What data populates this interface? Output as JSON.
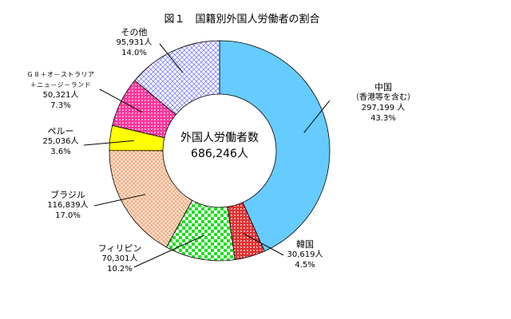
{
  "title": "図１　国籍別外国人労働者の割合",
  "center": {
    "label": "外国人労働者数",
    "total": "686,246人"
  },
  "chart_data": {
    "type": "pie",
    "title": "図１　国籍別外国人労働者の割合",
    "unit": "人",
    "total": 686246,
    "slices": [
      {
        "name": "中国",
        "sub": "（香港等を含む）",
        "value": 297199,
        "value_label": "297,199 人",
        "percent": 43.3,
        "percent_label": "43.3%",
        "color": "#66ccff",
        "pattern": "solid"
      },
      {
        "name": "韓国",
        "value": 30619,
        "value_label": "30,619人",
        "percent": 4.5,
        "percent_label": "4.5%",
        "color": "#e03030",
        "pattern": "dots"
      },
      {
        "name": "フィリピン",
        "value": 70301,
        "value_label": "70,301人",
        "percent": 10.2,
        "percent_label": "10.2%",
        "color": "#22dd22",
        "pattern": "checker"
      },
      {
        "name": "ブラジル",
        "value": 116839,
        "value_label": "116,839人",
        "percent": 17.0,
        "percent_label": "17.0%",
        "color": "#f5a878",
        "pattern": "crosshatch"
      },
      {
        "name": "ペルー",
        "value": 25036,
        "value_label": "25,036人",
        "percent": 3.6,
        "percent_label": "3.6%",
        "color": "#ffff00",
        "pattern": "solid"
      },
      {
        "name": "Ｇ８＋オ－ストラリア",
        "sub": "＋ニュ－ジ－ランド",
        "value": 50321,
        "value_label": "50,321人",
        "percent": 7.3,
        "percent_label": "7.3%",
        "color": "#ff3399",
        "pattern": "dots"
      },
      {
        "name": "その他",
        "value": 95931,
        "value_label": "95,931人",
        "percent": 14.0,
        "percent_label": "14.0%",
        "color": "#8080ff",
        "pattern": "diamond"
      }
    ]
  }
}
